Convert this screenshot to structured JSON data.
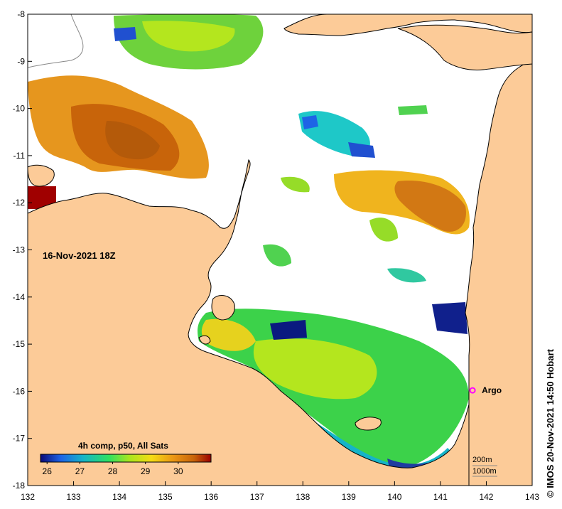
{
  "map": {
    "date_label": "16-Nov-2021 18Z",
    "credit": "© IMOS 20-Nov-2021 14:50 Hobart",
    "lon_range": [
      132,
      143
    ],
    "lat_range": [
      -18,
      -8
    ],
    "lon_ticks": [
      132,
      133,
      134,
      135,
      136,
      137,
      138,
      139,
      140,
      141,
      142,
      143
    ],
    "lat_ticks": [
      -8,
      -9,
      -10,
      -11,
      -12,
      -13,
      -14,
      -15,
      -16,
      -17,
      -18
    ],
    "land_color": "#fccb98",
    "no_data_color": "#ffffff",
    "argo": {
      "label": "Argo",
      "lon": 141.7,
      "lat": -15.98,
      "color": "#ff00ff"
    },
    "contours": {
      "c200_label": "200m",
      "c1000_label": "1000m"
    }
  },
  "colorbar": {
    "title": "4h comp, p50, All Sats",
    "min": 25.8,
    "max": 31.0,
    "tick_values": [
      26,
      27,
      28,
      29,
      30
    ],
    "tick_labels": [
      "26",
      "27",
      "28",
      "29",
      "30"
    ],
    "colors": [
      "#0a0a78",
      "#1e64e6",
      "#16b4c8",
      "#2ee062",
      "#a8e61e",
      "#f5dc14",
      "#eb9614",
      "#c8640a",
      "#9b0000"
    ]
  }
}
